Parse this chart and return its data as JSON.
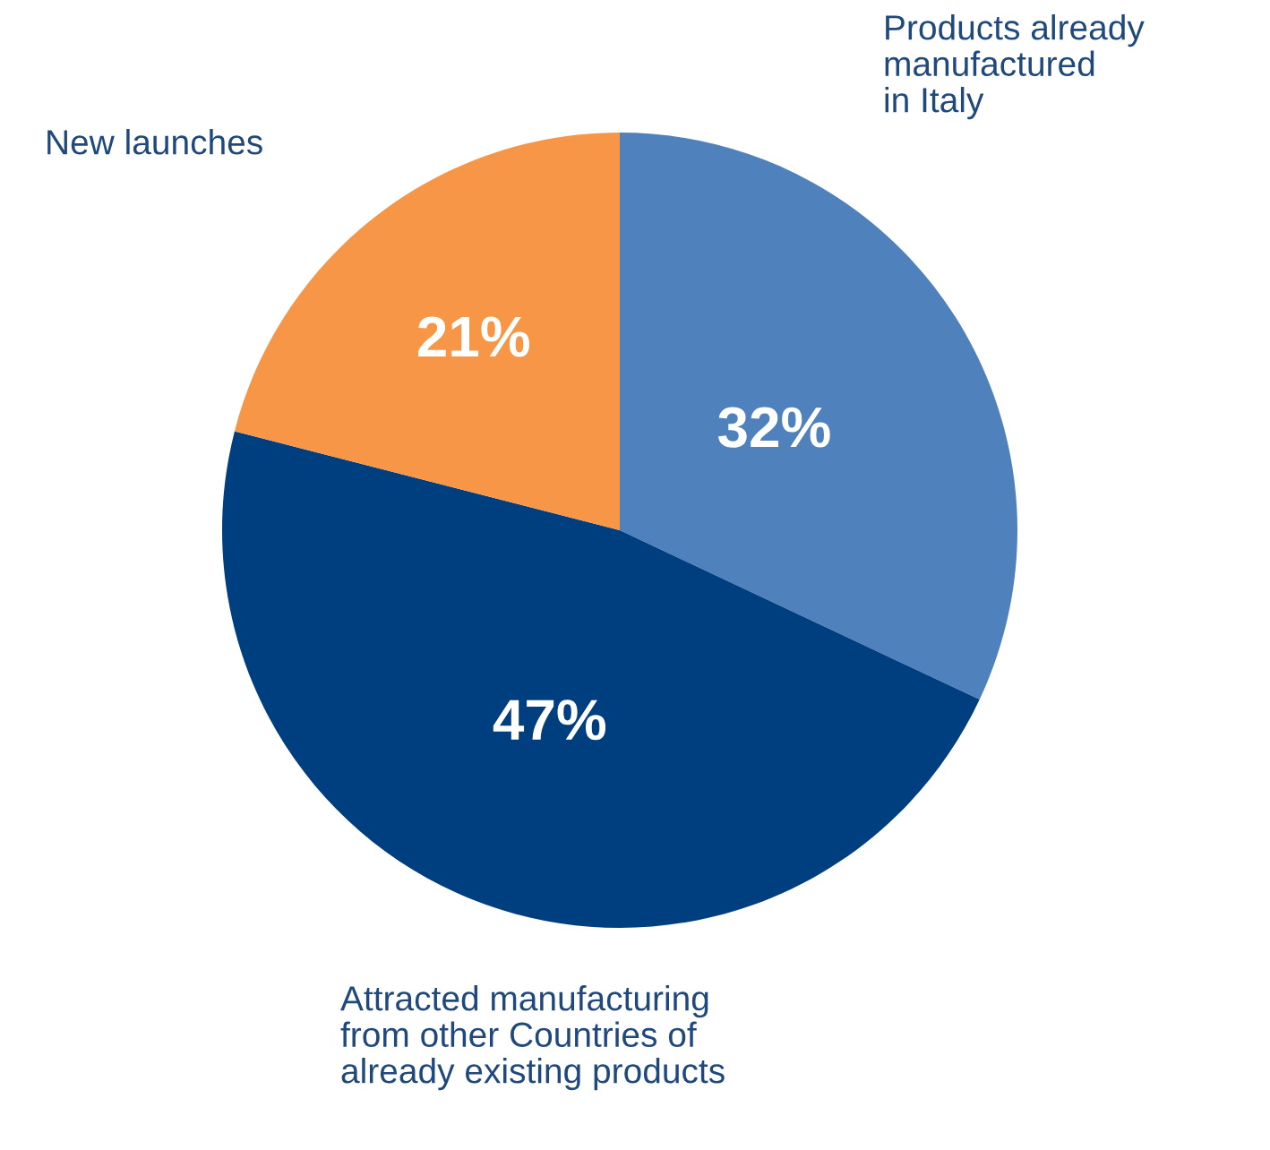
{
  "chart_data": {
    "type": "pie",
    "categories": [
      "Products already\nmanufactured\nin Italy",
      "Attracted manufacturing\nfrom other Countries of\nalready existing products",
      "New launches"
    ],
    "values": [
      32,
      47,
      21
    ],
    "value_labels": [
      "32%",
      "47%",
      "21%"
    ],
    "colors": [
      "#4f81bd",
      "#003f7f",
      "#f79646"
    ],
    "legend": false
  }
}
